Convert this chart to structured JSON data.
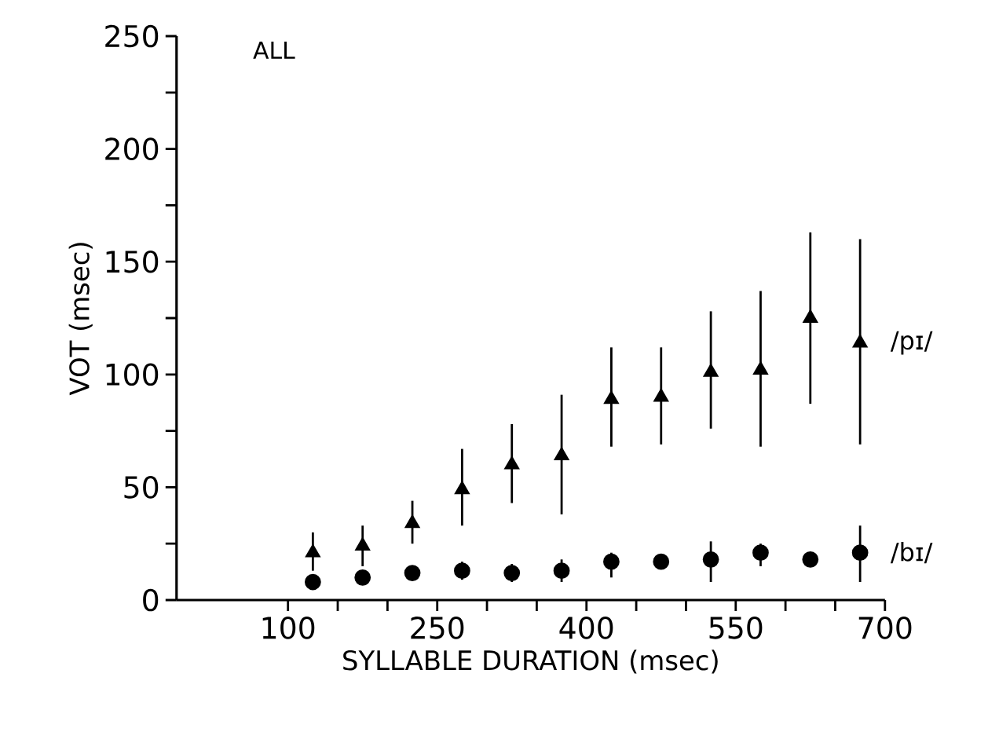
{
  "chart_data": {
    "type": "scatter",
    "xlabel": "SYLLABLE DURATION (msec)",
    "ylabel": "VOT (msec)",
    "annotations": [
      "ALL"
    ],
    "x": [
      125,
      175,
      225,
      275,
      325,
      375,
      425,
      475,
      525,
      575,
      625,
      675
    ],
    "series": [
      {
        "name": "/pɪ/",
        "color": "#000000",
        "marker": "triangle",
        "values": [
          21,
          24,
          34,
          49,
          60,
          64,
          89,
          90,
          101,
          102,
          125,
          114
        ],
        "errors": [
          [
            13,
            30
          ],
          [
            15,
            33
          ],
          [
            25,
            44
          ],
          [
            33,
            67
          ],
          [
            43,
            78
          ],
          [
            38,
            91
          ],
          [
            68,
            112
          ],
          [
            69,
            112
          ],
          [
            76,
            128
          ],
          [
            68,
            137
          ],
          [
            87,
            163
          ],
          [
            69,
            160
          ]
        ]
      },
      {
        "name": "/bɪ/",
        "color": "#000000",
        "marker": "circle",
        "values": [
          8,
          10,
          12,
          13,
          12,
          13,
          17,
          17,
          18,
          21,
          18,
          21
        ],
        "errors": [
          null,
          null,
          null,
          [
            9,
            17
          ],
          [
            8,
            16
          ],
          [
            8,
            18
          ],
          [
            10,
            21
          ],
          null,
          [
            8,
            26
          ],
          [
            15,
            25
          ],
          null,
          [
            8,
            33
          ]
        ]
      }
    ],
    "xlim": [
      -12,
      700
    ],
    "xticks": [
      100,
      {
        "value": 150,
        "label": null
      },
      {
        "value": 200,
        "label": null
      },
      250,
      {
        "value": 300,
        "label": null
      },
      {
        "value": 350,
        "label": null
      },
      400,
      {
        "value": 450,
        "label": null
      },
      {
        "value": 500,
        "label": null
      },
      550,
      {
        "value": 600,
        "label": null
      },
      {
        "value": 650,
        "label": null
      },
      700
    ],
    "ylim": [
      0,
      250
    ],
    "yticks": [
      0,
      {
        "value": 25,
        "label": null
      },
      50,
      {
        "value": 75,
        "label": null
      },
      100,
      {
        "value": 125,
        "label": null
      },
      150,
      {
        "value": 175,
        "label": null
      },
      200,
      {
        "value": 225,
        "label": null
      },
      250
    ]
  }
}
